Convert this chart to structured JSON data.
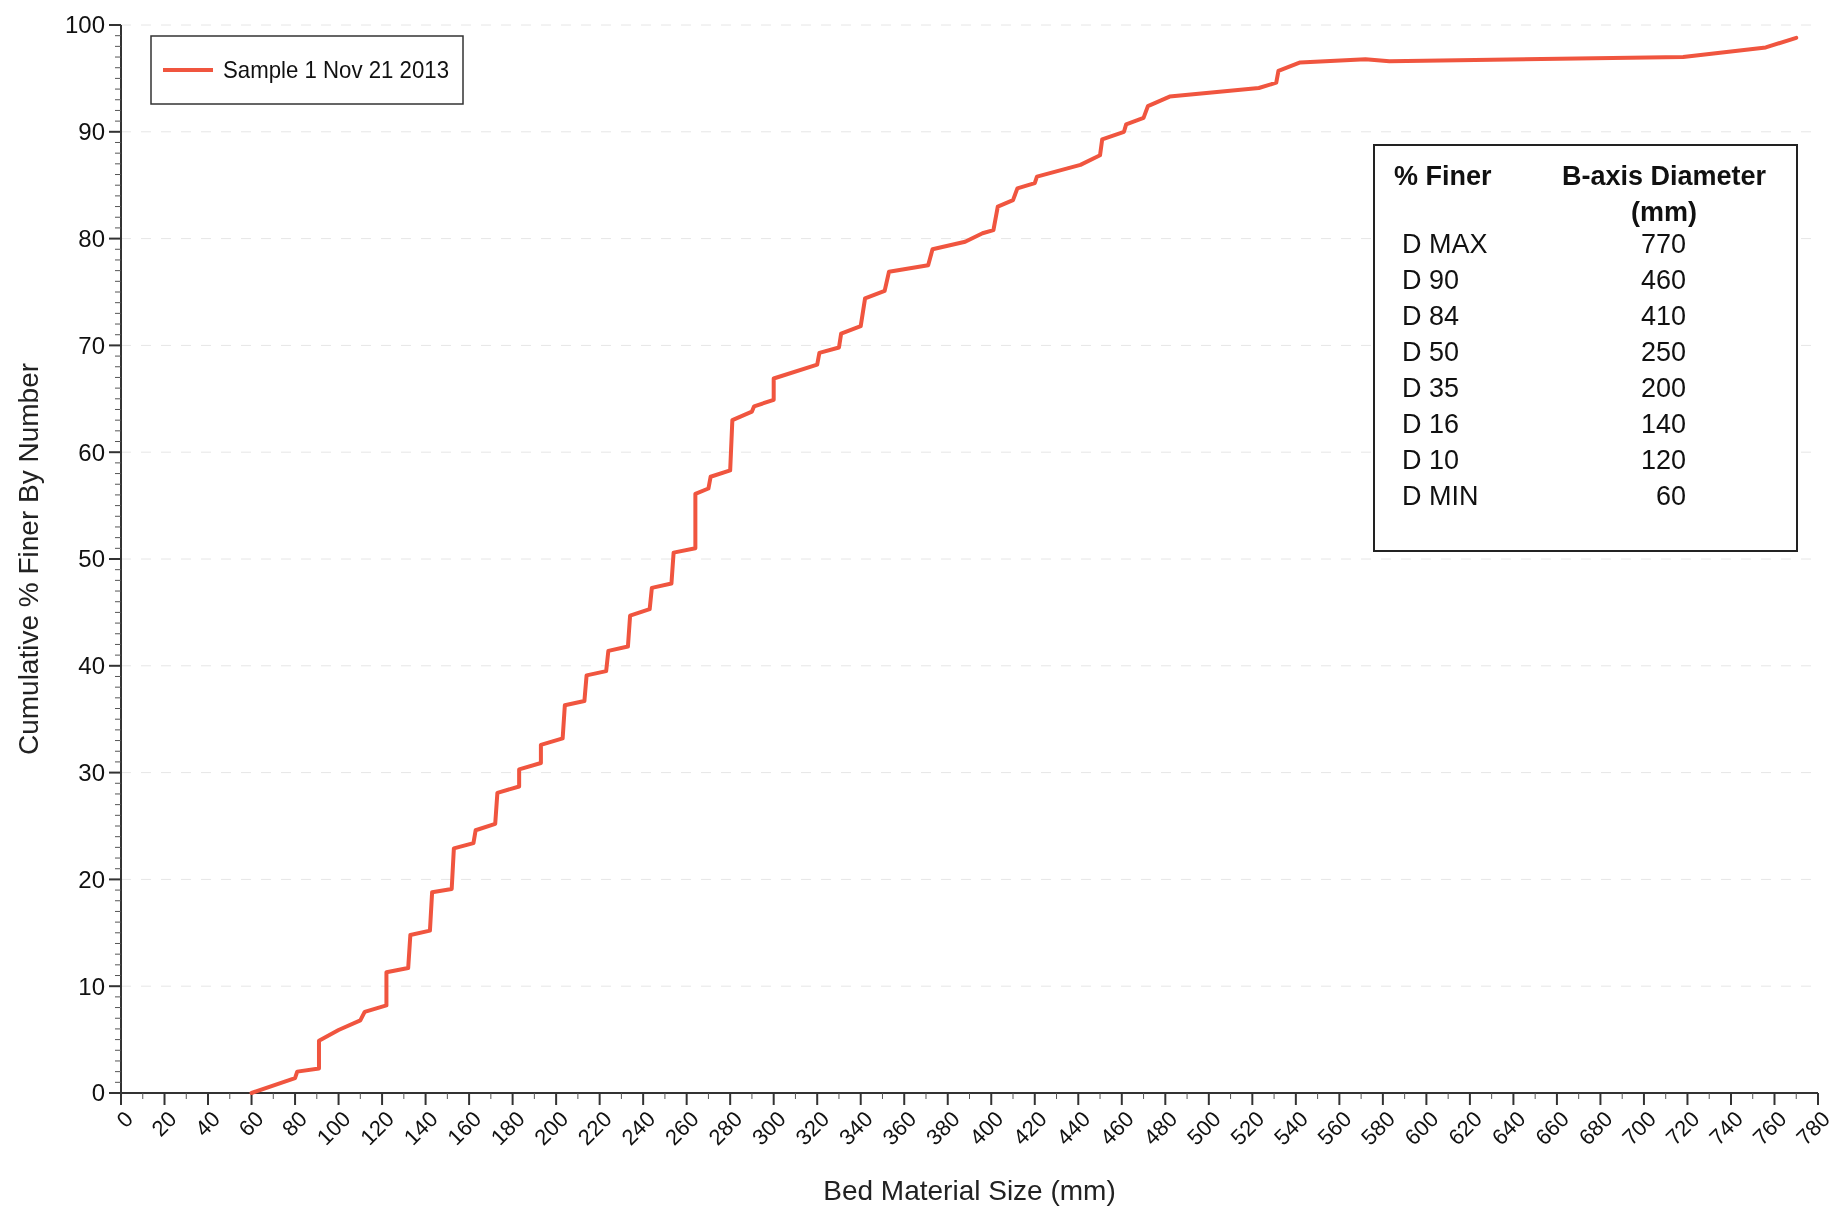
{
  "chart_data": {
    "type": "line",
    "xlabel": "Bed Material Size (mm)",
    "ylabel": "Cumulative % Finer By Number",
    "xlim": [
      0,
      780
    ],
    "xticks": [
      0,
      20,
      40,
      60,
      80,
      100,
      120,
      140,
      160,
      180,
      200,
      220,
      240,
      260,
      280,
      300,
      320,
      340,
      360,
      380,
      400,
      420,
      440,
      460,
      480,
      500,
      520,
      540,
      560,
      580,
      600,
      620,
      640,
      660,
      680,
      700,
      720,
      740,
      760,
      780
    ],
    "ylim": [
      0,
      100
    ],
    "yticks": [
      0,
      10,
      20,
      30,
      40,
      50,
      60,
      70,
      80,
      90,
      100
    ],
    "grid": "y",
    "legend": "top left",
    "marker": "none",
    "line_style": "solid",
    "series": [
      {
        "name": "Sample 1 Nov 21 2013",
        "color": "#f0553f",
        "x": [
          60,
          80,
          81,
          91,
          91,
          100,
          110,
          112,
          122,
          122,
          132,
          133,
          142,
          143,
          152,
          153,
          162,
          163,
          172,
          173,
          183,
          183,
          193,
          193,
          203,
          204,
          213,
          214,
          223,
          224,
          233,
          234,
          243,
          244,
          253,
          254,
          264,
          264,
          270,
          271,
          280,
          281,
          290,
          291,
          300,
          300,
          320,
          321,
          330,
          331,
          340,
          342,
          351,
          353,
          371,
          373,
          388,
          396,
          401,
          403,
          410,
          412,
          420,
          421,
          441,
          450,
          451,
          461,
          462,
          470,
          472,
          482,
          523,
          531,
          532,
          542,
          572,
          583,
          718,
          756,
          770
        ],
        "values": [
          0,
          1.4,
          2,
          2.3,
          4.9,
          5.9,
          6.8,
          7.6,
          8.2,
          11.3,
          11.7,
          14.8,
          15.2,
          18.8,
          19.1,
          22.9,
          23.4,
          24.6,
          25.2,
          28.1,
          28.7,
          30.3,
          30.9,
          32.6,
          33.2,
          36.3,
          36.7,
          39.1,
          39.5,
          41.4,
          41.8,
          44.7,
          45.3,
          47.3,
          47.7,
          50.6,
          51,
          56.1,
          56.6,
          57.7,
          58.3,
          63,
          63.8,
          64.3,
          64.9,
          66.9,
          68.2,
          69.3,
          69.8,
          71.1,
          71.8,
          74.4,
          75.1,
          76.9,
          77.5,
          79,
          79.7,
          80.5,
          80.8,
          83,
          83.6,
          84.7,
          85.2,
          85.8,
          86.9,
          87.8,
          89.3,
          90,
          90.7,
          91.3,
          92.4,
          93.3,
          94.1,
          94.6,
          95.7,
          96.5,
          96.8,
          96.6,
          97,
          97.9,
          98.8
        ]
      }
    ],
    "annotations": [
      "% Finer",
      "B-axis Diameter (mm)",
      "D MAX",
      "770",
      "D 90",
      "460",
      "D 84",
      "410",
      "D 50",
      "250",
      "D 35",
      "200",
      "D 16",
      "140",
      "D 10",
      "120",
      "D MIN",
      "60"
    ]
  }
}
